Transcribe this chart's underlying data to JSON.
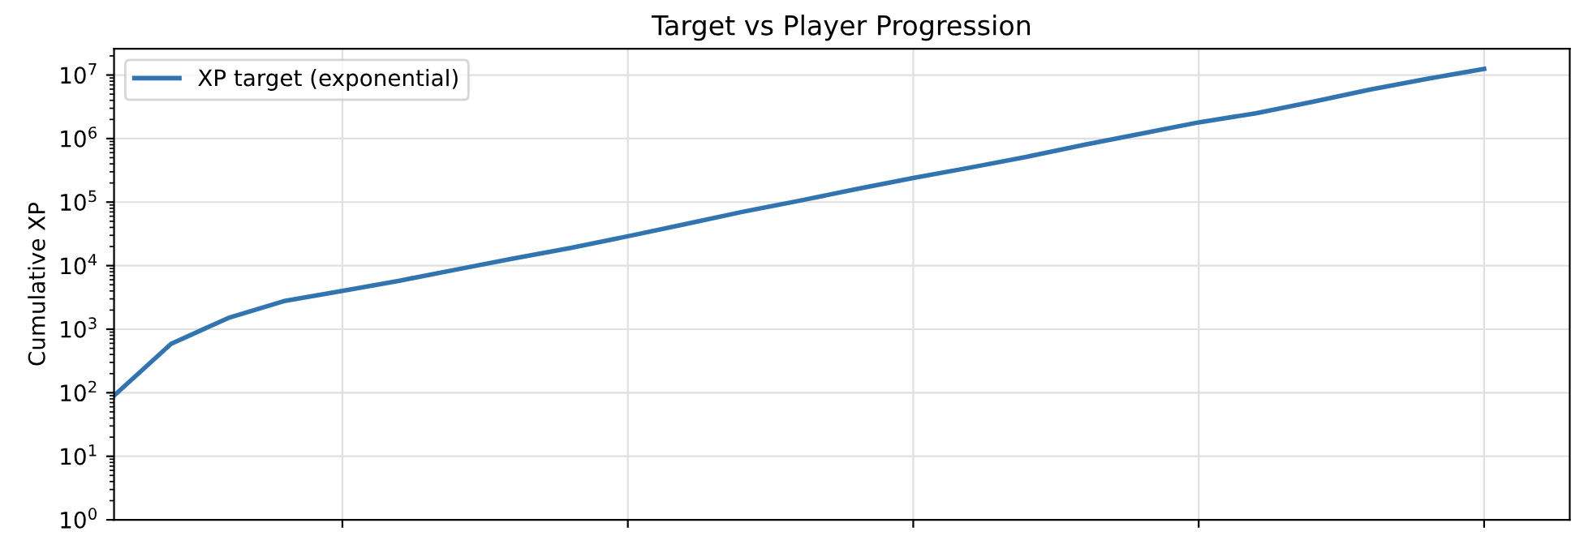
{
  "chart_data": {
    "type": "line",
    "title": "Target vs Player Progression",
    "ylabel": "Cumulative XP",
    "log": "y",
    "grid": true,
    "legend": "top left",
    "categories": [
      null,
      null,
      null,
      null,
      null,
      null,
      null,
      null,
      null,
      null,
      null,
      null,
      null,
      null,
      null,
      null,
      null,
      null,
      null,
      null,
      null,
      null,
      null,
      null,
      null
    ],
    "series": [
      {
        "name": "XP target (exponential)",
        "color": "#3274b0",
        "values": [
          90,
          590,
          1500,
          2800,
          4000,
          5800,
          8700,
          13000,
          19000,
          29000,
          45000,
          70000,
          105000,
          160000,
          240000,
          350000,
          520000,
          800000,
          1200000,
          1800000,
          2500000,
          3800000,
          5900000,
          8700000,
          12500000
        ]
      }
    ],
    "ylim": [
      1,
      26000000
    ],
    "yticks": [
      {
        "value": 1,
        "label": "10$^{0}$"
      },
      {
        "value": 10,
        "label": "10$^{1}$"
      },
      {
        "value": 100,
        "label": "10$^{2}$"
      },
      {
        "value": 1000,
        "label": "10$^{3}$"
      },
      {
        "value": 10000,
        "label": "10$^{4}$"
      },
      {
        "value": 100000,
        "label": "10$^{5}$"
      },
      {
        "value": 1000000,
        "label": "10$^{6}$"
      },
      {
        "value": 10000000,
        "label": "10$^{7}$"
      }
    ]
  }
}
